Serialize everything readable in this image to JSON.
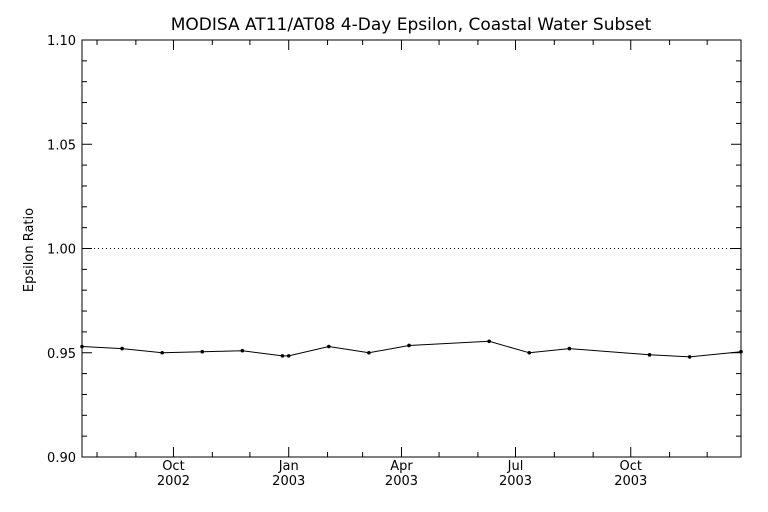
{
  "chart_data": {
    "type": "line",
    "title": "MODISA AT11/AT08 4-Day Epsilon, Coastal Water Subset",
    "xlabel": "",
    "ylabel": "Epsilon Ratio",
    "ylim": [
      0.9,
      1.1
    ],
    "xlim": [
      "2002-07-20",
      "2003-12-28"
    ],
    "y_ticks": [
      "0.90",
      "0.95",
      "1.00",
      "1.05",
      "1.10"
    ],
    "x_ticks": [
      {
        "date": "2002-10-01",
        "line1": "Oct",
        "line2": "2002"
      },
      {
        "date": "2003-01-01",
        "line1": "Jan",
        "line2": "2003"
      },
      {
        "date": "2003-04-01",
        "line1": "Apr",
        "line2": "2003"
      },
      {
        "date": "2003-07-01",
        "line1": "Jul",
        "line2": "2003"
      },
      {
        "date": "2003-10-01",
        "line1": "Oct",
        "line2": "2003"
      }
    ],
    "reference_line": 1.0,
    "series": [
      {
        "x": [
          "2002-07-20",
          "2002-08-21",
          "2002-09-22",
          "2002-10-24",
          "2002-11-25",
          "2002-12-27",
          "2003-01-01",
          "2003-02-02",
          "2003-03-06",
          "2003-04-07",
          "2003-06-10",
          "2003-07-12",
          "2003-08-13",
          "2003-10-16",
          "2003-11-17",
          "2003-12-28"
        ],
        "values": [
          0.953,
          0.952,
          0.95,
          0.9505,
          0.951,
          0.9485,
          0.9485,
          0.953,
          0.95,
          0.9535,
          0.9555,
          0.95,
          0.952,
          0.949,
          0.948,
          0.9505
        ]
      }
    ]
  }
}
